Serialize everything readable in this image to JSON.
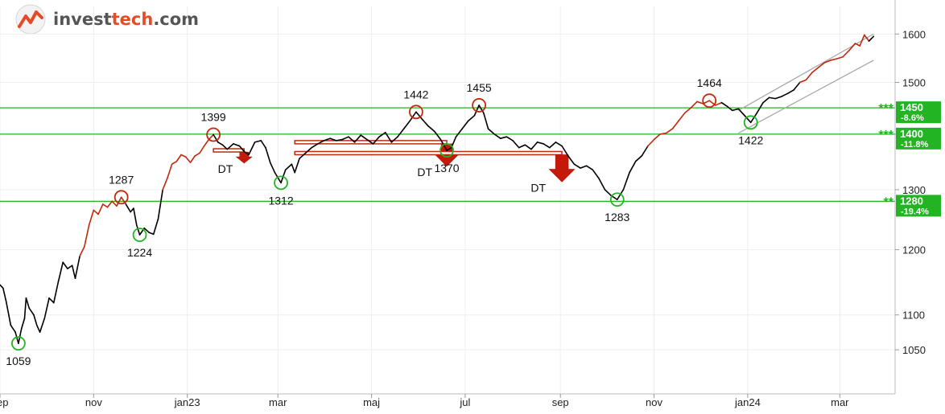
{
  "logo": {
    "part1": "invest",
    "part2": "tech",
    "part3": ".com",
    "icon": "investtech-logo-icon"
  },
  "colors": {
    "support": "#22b422",
    "rising": "#c0290d",
    "price": "#000000",
    "channel": "#a8a8a8",
    "resist_circle": "#c0290d",
    "support_circle": "#22b422"
  },
  "chart_data": {
    "type": "line",
    "title": "",
    "xlabel": "",
    "ylabel": "",
    "y_scale": "log",
    "ylim": [
      990,
      1660
    ],
    "xlim": [
      "2022-09-01",
      "2024-04-06"
    ],
    "y_ticks": [
      1050,
      1100,
      1200,
      1300,
      1400,
      1500,
      1600
    ],
    "x_ticks": [
      {
        "date": "2022-09-01",
        "label": "sep"
      },
      {
        "date": "2022-11-01",
        "label": "nov"
      },
      {
        "date": "2023-01-01",
        "label": "jan23"
      },
      {
        "date": "2023-03-01",
        "label": "mar"
      },
      {
        "date": "2023-05-01",
        "label": "maj"
      },
      {
        "date": "2023-07-01",
        "label": "jul"
      },
      {
        "date": "2023-09-01",
        "label": "sep"
      },
      {
        "date": "2023-11-01",
        "label": "nov"
      },
      {
        "date": "2024-01-01",
        "label": "jan24"
      },
      {
        "date": "2024-03-01",
        "label": "mar"
      }
    ],
    "series": [
      {
        "points": [
          [
            "2022-09-01",
            1145
          ],
          [
            "2022-09-03",
            1140
          ],
          [
            "2022-09-05",
            1120
          ],
          [
            "2022-09-08",
            1085
          ],
          [
            "2022-09-11",
            1075
          ],
          [
            "2022-09-13",
            1059
          ],
          [
            "2022-09-15",
            1080
          ],
          [
            "2022-09-17",
            1095
          ],
          [
            "2022-09-18",
            1125
          ],
          [
            "2022-09-20",
            1110
          ],
          [
            "2022-09-23",
            1100
          ],
          [
            "2022-09-25",
            1085
          ],
          [
            "2022-09-27",
            1075
          ],
          [
            "2022-09-30",
            1095
          ],
          [
            "2022-10-03",
            1125
          ],
          [
            "2022-10-06",
            1118
          ],
          [
            "2022-10-09",
            1150
          ],
          [
            "2022-10-12",
            1180
          ],
          [
            "2022-10-15",
            1170
          ],
          [
            "2022-10-18",
            1175
          ],
          [
            "2022-10-20",
            1155
          ],
          [
            "2022-10-23",
            1190
          ],
          [
            "2022-10-26",
            1205
          ],
          [
            "2022-10-29",
            1240
          ],
          [
            "2022-11-01",
            1265
          ],
          [
            "2022-11-04",
            1258
          ],
          [
            "2022-11-07",
            1275
          ],
          [
            "2022-11-10",
            1270
          ],
          [
            "2022-11-13",
            1280
          ],
          [
            "2022-11-16",
            1272
          ],
          [
            "2022-11-19",
            1287
          ],
          [
            "2022-11-22",
            1275
          ],
          [
            "2022-11-25",
            1262
          ],
          [
            "2022-11-27",
            1268
          ],
          [
            "2022-11-29",
            1240
          ],
          [
            "2022-12-01",
            1224
          ],
          [
            "2022-12-04",
            1235
          ],
          [
            "2022-12-07",
            1228
          ],
          [
            "2022-12-10",
            1225
          ],
          [
            "2022-12-13",
            1250
          ],
          [
            "2022-12-16",
            1300
          ],
          [
            "2022-12-19",
            1320
          ],
          [
            "2022-12-22",
            1345
          ],
          [
            "2022-12-25",
            1350
          ],
          [
            "2022-12-28",
            1362
          ],
          [
            "2022-12-31",
            1358
          ],
          [
            "2023-01-03",
            1348
          ],
          [
            "2023-01-06",
            1360
          ],
          [
            "2023-01-09",
            1365
          ],
          [
            "2023-01-12",
            1378
          ],
          [
            "2023-01-15",
            1390
          ],
          [
            "2023-01-18",
            1399
          ],
          [
            "2023-01-21",
            1385
          ],
          [
            "2023-01-24",
            1380
          ],
          [
            "2023-01-27",
            1372
          ],
          [
            "2023-01-31",
            1382
          ],
          [
            "2023-02-04",
            1378
          ],
          [
            "2023-02-07",
            1368
          ],
          [
            "2023-02-10",
            1362
          ],
          [
            "2023-02-14",
            1385
          ],
          [
            "2023-02-18",
            1388
          ],
          [
            "2023-02-21",
            1375
          ],
          [
            "2023-02-24",
            1348
          ],
          [
            "2023-02-27",
            1330
          ],
          [
            "2023-03-03",
            1312
          ],
          [
            "2023-03-06",
            1335
          ],
          [
            "2023-03-10",
            1345
          ],
          [
            "2023-03-12",
            1330
          ],
          [
            "2023-03-15",
            1355
          ],
          [
            "2023-03-19",
            1365
          ],
          [
            "2023-03-23",
            1375
          ],
          [
            "2023-03-27",
            1382
          ],
          [
            "2023-03-31",
            1388
          ],
          [
            "2023-04-04",
            1392
          ],
          [
            "2023-04-08",
            1388
          ],
          [
            "2023-04-12",
            1390
          ],
          [
            "2023-04-16",
            1395
          ],
          [
            "2023-04-20",
            1385
          ],
          [
            "2023-04-24",
            1398
          ],
          [
            "2023-04-28",
            1390
          ],
          [
            "2023-05-02",
            1382
          ],
          [
            "2023-05-06",
            1395
          ],
          [
            "2023-05-10",
            1403
          ],
          [
            "2023-05-14",
            1385
          ],
          [
            "2023-05-18",
            1395
          ],
          [
            "2023-05-22",
            1410
          ],
          [
            "2023-05-26",
            1425
          ],
          [
            "2023-05-30",
            1442
          ],
          [
            "2023-06-03",
            1428
          ],
          [
            "2023-06-07",
            1415
          ],
          [
            "2023-06-11",
            1405
          ],
          [
            "2023-06-15",
            1390
          ],
          [
            "2023-06-19",
            1370
          ],
          [
            "2023-06-22",
            1375
          ],
          [
            "2023-06-25",
            1395
          ],
          [
            "2023-06-29",
            1410
          ],
          [
            "2023-07-03",
            1425
          ],
          [
            "2023-07-07",
            1435
          ],
          [
            "2023-07-10",
            1455
          ],
          [
            "2023-07-13",
            1440
          ],
          [
            "2023-07-16",
            1410
          ],
          [
            "2023-07-20",
            1400
          ],
          [
            "2023-07-24",
            1392
          ],
          [
            "2023-07-28",
            1395
          ],
          [
            "2023-08-01",
            1388
          ],
          [
            "2023-08-05",
            1375
          ],
          [
            "2023-08-09",
            1380
          ],
          [
            "2023-08-13",
            1372
          ],
          [
            "2023-08-17",
            1385
          ],
          [
            "2023-08-21",
            1382
          ],
          [
            "2023-08-25",
            1375
          ],
          [
            "2023-08-29",
            1385
          ],
          [
            "2023-09-02",
            1378
          ],
          [
            "2023-09-06",
            1360
          ],
          [
            "2023-09-10",
            1345
          ],
          [
            "2023-09-14",
            1338
          ],
          [
            "2023-09-18",
            1342
          ],
          [
            "2023-09-22",
            1335
          ],
          [
            "2023-09-26",
            1320
          ],
          [
            "2023-09-30",
            1300
          ],
          [
            "2023-10-04",
            1290
          ],
          [
            "2023-10-08",
            1283
          ],
          [
            "2023-10-12",
            1300
          ],
          [
            "2023-10-16",
            1330
          ],
          [
            "2023-10-20",
            1350
          ],
          [
            "2023-10-24",
            1360
          ],
          [
            "2023-10-28",
            1378
          ],
          [
            "2023-11-01",
            1390
          ],
          [
            "2023-11-05",
            1400
          ],
          [
            "2023-11-09",
            1402
          ],
          [
            "2023-11-13",
            1410
          ],
          [
            "2023-11-17",
            1425
          ],
          [
            "2023-11-21",
            1440
          ],
          [
            "2023-11-25",
            1450
          ],
          [
            "2023-11-29",
            1462
          ],
          [
            "2023-12-03",
            1458
          ],
          [
            "2023-12-07",
            1464
          ],
          [
            "2023-12-11",
            1455
          ],
          [
            "2023-12-15",
            1460
          ],
          [
            "2023-12-19",
            1452
          ],
          [
            "2023-12-22",
            1445
          ],
          [
            "2023-12-26",
            1448
          ],
          [
            "2023-12-30",
            1435
          ],
          [
            "2024-01-03",
            1422
          ],
          [
            "2024-01-07",
            1440
          ],
          [
            "2024-01-11",
            1460
          ],
          [
            "2024-01-15",
            1470
          ],
          [
            "2024-01-19",
            1468
          ],
          [
            "2024-01-23",
            1472
          ],
          [
            "2024-01-27",
            1478
          ],
          [
            "2024-01-31",
            1485
          ],
          [
            "2024-02-04",
            1500
          ],
          [
            "2024-02-08",
            1505
          ],
          [
            "2024-02-12",
            1520
          ],
          [
            "2024-02-16",
            1530
          ],
          [
            "2024-02-20",
            1540
          ],
          [
            "2024-02-24",
            1545
          ],
          [
            "2024-02-28",
            1548
          ],
          [
            "2024-03-03",
            1552
          ],
          [
            "2024-03-07",
            1565
          ],
          [
            "2024-03-11",
            1580
          ],
          [
            "2024-03-14",
            1575
          ],
          [
            "2024-03-17",
            1598
          ],
          [
            "2024-03-20",
            1585
          ],
          [
            "2024-03-23",
            1595
          ]
        ]
      }
    ],
    "rising_segments": [
      [
        "2022-10-23",
        "2022-11-22"
      ],
      [
        "2022-12-16",
        "2023-01-18"
      ],
      [
        "2023-10-28",
        "2023-12-15"
      ],
      [
        "2024-02-04",
        "2024-03-20"
      ]
    ],
    "support_lines": [
      {
        "value": 1450,
        "label": "1450",
        "pct": "-8.6%",
        "stars": "***"
      },
      {
        "value": 1400,
        "label": "1400",
        "pct": "-11.8%",
        "stars": "***"
      },
      {
        "value": 1280,
        "label": "1280",
        "pct": "-19.4%",
        "stars": "**"
      }
    ],
    "trend_channel": {
      "upper": [
        [
          "2023-12-26",
          1445
        ],
        [
          "2024-03-23",
          1600
        ]
      ],
      "lower": [
        [
          "2023-12-26",
          1402
        ],
        [
          "2024-03-23",
          1545
        ]
      ]
    },
    "annotations": [
      {
        "date": "2022-09-13",
        "value": 1059,
        "label": "1059",
        "kind": "support"
      },
      {
        "date": "2022-11-19",
        "value": 1287,
        "label": "1287",
        "kind": "resistance"
      },
      {
        "date": "2022-12-01",
        "value": 1224,
        "label": "1224",
        "kind": "support"
      },
      {
        "date": "2023-01-18",
        "value": 1399,
        "label": "1399",
        "kind": "resistance"
      },
      {
        "date": "2023-03-03",
        "value": 1312,
        "label": "1312",
        "kind": "support"
      },
      {
        "date": "2023-05-30",
        "value": 1442,
        "label": "1442",
        "kind": "resistance"
      },
      {
        "date": "2023-06-19",
        "value": 1370,
        "label": "1370",
        "kind": "support"
      },
      {
        "date": "2023-07-10",
        "value": 1455,
        "label": "1455",
        "kind": "resistance"
      },
      {
        "date": "2023-10-08",
        "value": 1283,
        "label": "1283",
        "kind": "support"
      },
      {
        "date": "2023-12-07",
        "value": 1464,
        "label": "1464",
        "kind": "resistance"
      },
      {
        "date": "2024-01-03",
        "value": 1422,
        "label": "1422",
        "kind": "support"
      }
    ],
    "double_tops": [
      {
        "from": "2023-01-18",
        "to": "2023-02-07",
        "level": 1370,
        "label": "DT",
        "size": "small"
      },
      {
        "from": "2023-03-12",
        "to": "2023-06-19",
        "level": 1385,
        "label": "DT",
        "size": "medium"
      },
      {
        "from": "2023-03-12",
        "to": "2023-09-02",
        "level": 1365,
        "label": "DT",
        "size": "large"
      }
    ]
  }
}
